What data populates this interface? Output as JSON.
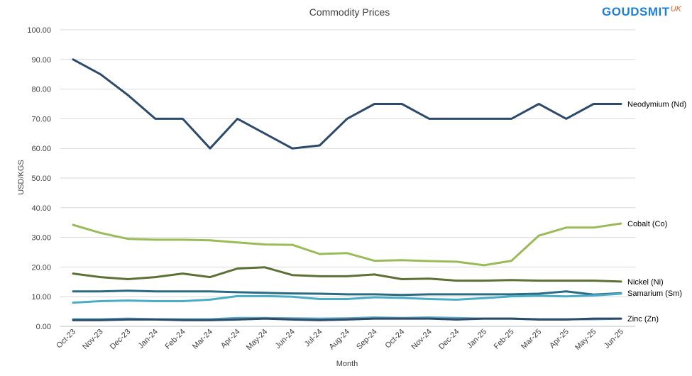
{
  "brand": {
    "name": "GOUDSMIT",
    "suffix": "UK"
  },
  "chart_data": {
    "type": "line",
    "title": "Commodity Prices",
    "xlabel": "Month",
    "ylabel": "USD/KGS",
    "ylim": [
      0,
      100
    ],
    "yticks": [
      "0.00",
      "10.00",
      "20.00",
      "30.00",
      "40.00",
      "50.00",
      "60.00",
      "70.00",
      "80.00",
      "90.00",
      "100.00"
    ],
    "grid": true,
    "legend": "labels at line ends (right)",
    "categories": [
      "Oct-23",
      "Nov-23",
      "Dec-23",
      "Jan-24",
      "Feb-24",
      "Mar-24",
      "Apr-24",
      "May-24",
      "Jun-24",
      "Jul-24",
      "Aug-24",
      "Sep-24",
      "Oct-24",
      "Nov-24",
      "Dec-24",
      "Jan-25",
      "Feb-25",
      "Mar-25",
      "Apr-25",
      "May-25",
      "Jun-25"
    ],
    "series": [
      {
        "name": "Neodymium (Nd)",
        "color": "#2e4a6b",
        "values": [
          90,
          85,
          78,
          70,
          70,
          60,
          70,
          65,
          60,
          61,
          70,
          75,
          75,
          70,
          70,
          70,
          70,
          75,
          70,
          75,
          75
        ]
      },
      {
        "name": "Cobalt (Co)",
        "color": "#9bbb59",
        "values": [
          34.2,
          31.5,
          29.5,
          29.2,
          29.2,
          29,
          28.3,
          27.6,
          27.5,
          24.4,
          24.7,
          22.1,
          22.3,
          22,
          21.8,
          20.6,
          22.1,
          30.6,
          33.3,
          33.3,
          34.7
        ]
      },
      {
        "name": "Nickel (Ni)",
        "color": "#5b7135",
        "values": [
          17.8,
          16.6,
          15.9,
          16.6,
          17.8,
          16.6,
          19.5,
          19.9,
          17.3,
          16.9,
          16.9,
          17.5,
          15.9,
          16.1,
          15.4,
          15.4,
          15.6,
          15.4,
          15.4,
          15.4,
          15.1
        ]
      },
      {
        "name": "Samarium (Sm)",
        "color": "#2a6a82",
        "values": [
          11.8,
          11.8,
          12,
          11.8,
          11.8,
          11.8,
          11.5,
          11.3,
          11.1,
          11,
          10.8,
          10.8,
          10.6,
          10.8,
          10.8,
          10.8,
          10.8,
          11,
          11.8,
          10.7,
          11.2
        ]
      },
      {
        "name": "Nickel (Ni) 2",
        "color": "#4bacc6",
        "unlabeled": true,
        "values": [
          8,
          8.5,
          8.7,
          8.5,
          8.5,
          9,
          10.2,
          10.2,
          10,
          9.2,
          9.2,
          9.8,
          9.6,
          9.2,
          9,
          9.5,
          10.1,
          10.3,
          10.1,
          10.4,
          11
        ]
      },
      {
        "name": "Zinc (Zn)",
        "color": "#5aa8c8",
        "values": [
          2.4,
          2.4,
          2.6,
          2.4,
          2.4,
          2.4,
          2.8,
          2.8,
          2.7,
          2.6,
          2.7,
          3,
          2.8,
          3,
          2.8,
          2.6,
          2.6,
          2.4,
          2.4,
          2.4,
          2.6
        ]
      },
      {
        "name": "Zinc (Zn) 2",
        "color": "#2e4a6b",
        "unlabeled": true,
        "values": [
          2.1,
          2.1,
          2.3,
          2.3,
          2.1,
          2.1,
          2.3,
          2.6,
          2.3,
          2.1,
          2.3,
          2.6,
          2.6,
          2.6,
          2.3,
          2.6,
          2.6,
          2.3,
          2.3,
          2.6,
          2.6
        ]
      }
    ]
  }
}
